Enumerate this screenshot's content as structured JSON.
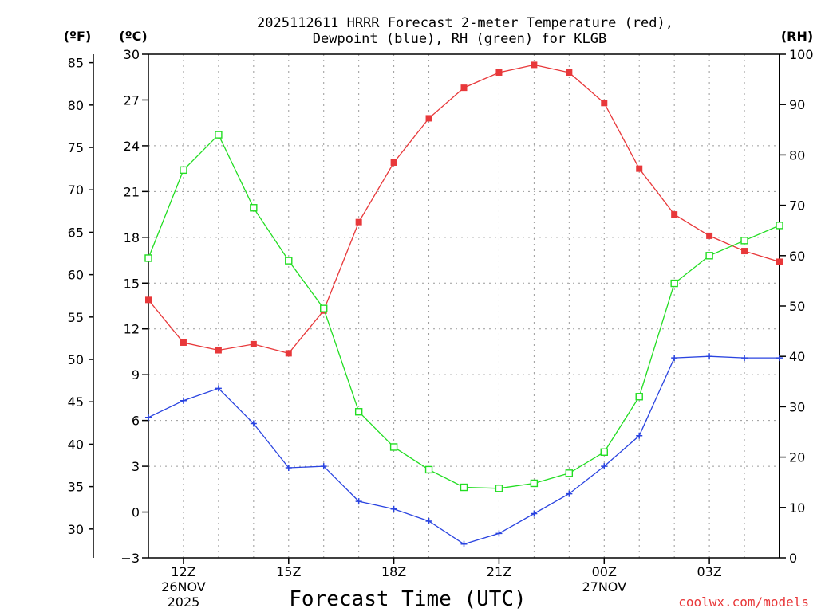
{
  "chart_data": {
    "type": "line",
    "title": "2025112611 HRRR Forecast 2-meter Temperature (red),",
    "title_line2": "Dewpoint (blue), RH (green) for KLGB",
    "xlabel": "Forecast Time (UTC)",
    "left_outer_axis_label": "(ºF)",
    "left_inner_axis_label": "(ºC)",
    "right_axis_label": "(RH)",
    "credit": "coolwx.com/models",
    "credit_color": "#e8383a",
    "x_hours": [
      0,
      1,
      2,
      3,
      4,
      5,
      6,
      7,
      8,
      9,
      10,
      11,
      12,
      13,
      14,
      15,
      16,
      17,
      18
    ],
    "x_ticks": [
      {
        "hour": 1,
        "label": "12Z",
        "label2": "26NOV",
        "label3": "2025"
      },
      {
        "hour": 4,
        "label": "15Z"
      },
      {
        "hour": 7,
        "label": "18Z"
      },
      {
        "hour": 10,
        "label": "21Z"
      },
      {
        "hour": 13,
        "label": "00Z",
        "label2": "27NOV"
      },
      {
        "hour": 16,
        "label": "03Z"
      }
    ],
    "yaxis_c": {
      "min": -3,
      "max": 30,
      "ticks": [
        "−3",
        "0",
        "3",
        "6",
        "9",
        "12",
        "15",
        "18",
        "21",
        "24",
        "27",
        "30"
      ],
      "tick_values": [
        -3,
        0,
        3,
        6,
        9,
        12,
        15,
        18,
        21,
        24,
        27,
        30
      ]
    },
    "yaxis_f": {
      "ticks": [
        "30",
        "35",
        "40",
        "45",
        "50",
        "55",
        "60",
        "65",
        "70",
        "75",
        "80",
        "85"
      ],
      "tick_values": [
        30,
        35,
        40,
        45,
        50,
        55,
        60,
        65,
        70,
        75,
        80,
        85
      ]
    },
    "yaxis_rh": {
      "min": 0,
      "max": 100,
      "ticks": [
        "0",
        "10",
        "20",
        "30",
        "40",
        "50",
        "60",
        "70",
        "80",
        "90",
        "100"
      ],
      "tick_values": [
        0,
        10,
        20,
        30,
        40,
        50,
        60,
        70,
        80,
        90,
        100
      ]
    },
    "series": [
      {
        "name": "Temperature",
        "axis": "C",
        "color": "#e8383a",
        "marker": "filled-square",
        "values": [
          13.9,
          11.1,
          10.6,
          11.0,
          10.4,
          13.2,
          19.0,
          22.9,
          25.8,
          27.8,
          28.8,
          29.3,
          28.8,
          26.8,
          22.5,
          19.5,
          18.1,
          17.1,
          16.4
        ]
      },
      {
        "name": "Dewpoint",
        "axis": "C",
        "color": "#2a44e0",
        "marker": "plus",
        "values": [
          6.2,
          7.3,
          8.1,
          5.8,
          2.9,
          3.0,
          0.7,
          0.2,
          -0.6,
          -2.1,
          -1.4,
          -0.1,
          1.2,
          3.0,
          5.0,
          10.1,
          10.2,
          10.1,
          10.1
        ]
      },
      {
        "name": "RH",
        "axis": "RH",
        "color": "#22dd22",
        "marker": "open-square",
        "values": [
          59.5,
          77.0,
          84.0,
          69.5,
          59.0,
          49.5,
          29.0,
          22.0,
          17.5,
          14.0,
          13.8,
          14.8,
          16.8,
          21.0,
          32.0,
          54.5,
          60.0,
          63.0,
          66.0
        ]
      }
    ],
    "grid": true
  }
}
